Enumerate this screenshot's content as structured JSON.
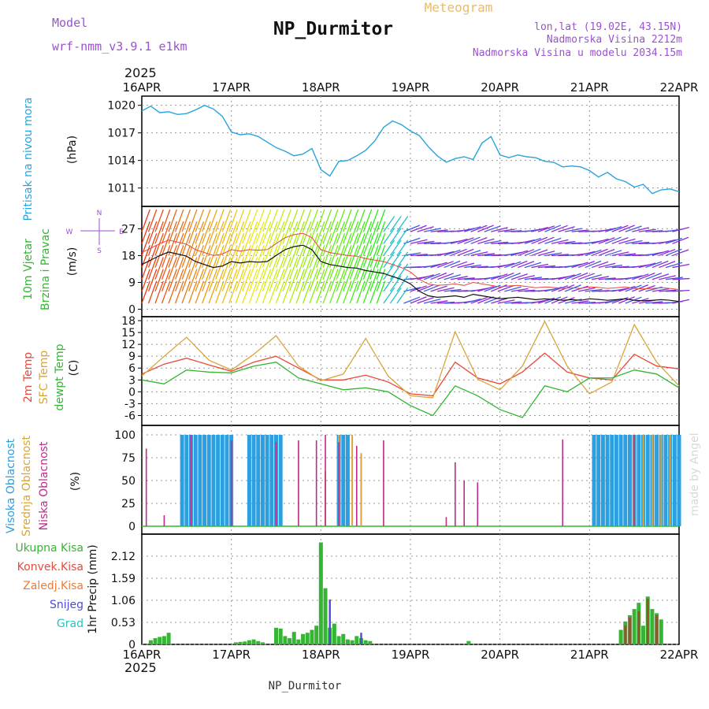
{
  "header": {
    "model_label": "Model",
    "model_name": "wrf-nmm_v3.9.1 e1km",
    "title": "NP_Durmitor",
    "subtitle": "Meteogram",
    "lonlat": "lon,lat (19.02E, 43.15N)",
    "elevation": "Nadmorska Visina 2212m",
    "model_elevation": "Nadmorska Visina u modelu 2034.15m",
    "credit": "made by Angel",
    "footer": "NP_Durmitor",
    "year_top": "2025",
    "year_bottom": "2025"
  },
  "colors": {
    "purple": "#9a52d0",
    "pressure": "#27a4de",
    "temp2m": "#e8493b",
    "sfc": "#d9a43a",
    "dew": "#35b533",
    "high_cloud": "#2b9fe0",
    "mid_cloud": "#d9a43a",
    "low_cloud": "#c02a8c",
    "total_precip": "#35b533",
    "conv_precip": "#e8493b",
    "frozen": "#ef7b2e",
    "snow": "#4b4bd8",
    "hail": "#27c2c2"
  },
  "axis": {
    "day_labels": [
      "16APR",
      "17APR",
      "18APR",
      "19APR",
      "20APR",
      "21APR",
      "22APR"
    ]
  },
  "chart_data": [
    {
      "type": "line",
      "title": "",
      "ylabel_left": "Pritisak na nivou mora",
      "ylabel": "(hPa)",
      "yticks": [
        "1020",
        "1017",
        "1014",
        "1011"
      ],
      "ylim": [
        1009.0,
        1021.0
      ],
      "series": [
        {
          "x": [
            0,
            0.1,
            0.2,
            0.3,
            0.4,
            0.5,
            0.6,
            0.7,
            0.8,
            0.9,
            1.0,
            1.1,
            1.2,
            1.3,
            1.4,
            1.5,
            1.6,
            1.7,
            1.8,
            1.9,
            2.0,
            2.1,
            2.2,
            2.3,
            2.4,
            2.5,
            2.6,
            2.7,
            2.8,
            2.9,
            3.0,
            3.1,
            3.2,
            3.3,
            3.4,
            3.5,
            3.6,
            3.7,
            3.8,
            3.9,
            4.0,
            4.1,
            4.2,
            4.3,
            4.4,
            4.5,
            4.6,
            4.7,
            4.8,
            4.9,
            5.0,
            5.1,
            5.2,
            5.3,
            5.4,
            5.5,
            5.6,
            5.7,
            5.8,
            5.9,
            6.0
          ],
          "values": [
            1019.4,
            1019.9,
            1019.2,
            1019.3,
            1019.0,
            1019.1,
            1019.5,
            1020.0,
            1019.6,
            1018.8,
            1017.1,
            1016.8,
            1016.9,
            1016.6,
            1016.0,
            1015.4,
            1015.0,
            1014.5,
            1014.7,
            1015.3,
            1013.0,
            1012.3,
            1013.9,
            1014.0,
            1014.5,
            1015.1,
            1016.1,
            1017.6,
            1018.3,
            1017.9,
            1017.2,
            1016.7,
            1015.5,
            1014.5,
            1013.8,
            1014.2,
            1014.4,
            1014.1,
            1015.9,
            1016.6,
            1014.6,
            1014.3,
            1014.6,
            1014.4,
            1014.3,
            1013.9,
            1013.8,
            1013.3,
            1013.4,
            1013.3,
            1012.9,
            1012.2,
            1012.7,
            1012.0,
            1011.7,
            1011.1,
            1011.4,
            1010.4,
            1010.8,
            1010.9,
            1010.6
          ],
          "name": ""
        }
      ]
    },
    {
      "type": "line",
      "title": "",
      "ylabel_left": "10m Vjetar",
      "ylabel_left2": "Brzina i Pravac",
      "ylabel": "(m/s)",
      "yticks": [
        "27",
        "18",
        "9",
        "0"
      ],
      "ylim": [
        -2.5,
        34.5
      ],
      "compass": {
        "n": "N",
        "s": "S",
        "w": "W",
        "e": "E"
      },
      "series": [
        {
          "name": "",
          "x": [
            0,
            0.1,
            0.2,
            0.3,
            0.4,
            0.5,
            0.6,
            0.7,
            0.8,
            0.9,
            1.0,
            1.1,
            1.2,
            1.3,
            1.4,
            1.5,
            1.6,
            1.7,
            1.8,
            1.9,
            2.0,
            2.1,
            2.2,
            2.3,
            2.4,
            2.5,
            2.6,
            2.7,
            2.8,
            2.9,
            3.0,
            3.1,
            3.2,
            3.3,
            3.4,
            3.5,
            3.6,
            3.7,
            3.8,
            3.9,
            4.0,
            4.1,
            4.2,
            4.3,
            4.4,
            4.5,
            4.6,
            4.7,
            4.8,
            4.9,
            5.0,
            5.1,
            5.2,
            5.3,
            5.4,
            5.5,
            5.6,
            5.7,
            5.8,
            5.9,
            6.0
          ],
          "values": [
            15.0,
            16.5,
            18.0,
            19.2,
            18.5,
            17.8,
            16.0,
            15.0,
            14.0,
            14.5,
            16.0,
            15.5,
            16.0,
            15.8,
            16.0,
            18.0,
            20.0,
            21.0,
            21.5,
            20.0,
            16.0,
            15.0,
            14.5,
            14.0,
            13.8,
            13.0,
            12.5,
            12.0,
            11.0,
            10.0,
            8.5,
            6.0,
            4.5,
            4.0,
            4.2,
            4.5,
            4.0,
            5.0,
            4.5,
            4.0,
            3.5,
            3.8,
            4.0,
            3.6,
            3.2,
            3.5,
            3.3,
            3.0,
            3.2,
            3.0,
            3.5,
            3.3,
            3.0,
            3.2,
            3.5,
            3.0,
            2.8,
            3.0,
            3.2,
            3.0,
            2.6
          ]
        }
      ]
    },
    {
      "type": "line",
      "title": "",
      "ylabel_left": "2m Temp",
      "ylabel_left2": "SFC Temp",
      "ylabel_left3": "dewpt Temp",
      "ylabel": "(C)",
      "yticks": [
        "18",
        "15",
        "12",
        "9",
        "6",
        "3",
        "0",
        "-3",
        "-6"
      ],
      "ylim": [
        -8.5,
        19.0
      ],
      "series": [
        {
          "name": "",
          "x": [
            0,
            0.25,
            0.5,
            0.75,
            1.0,
            1.25,
            1.5,
            1.75,
            2.0,
            2.25,
            2.5,
            2.75,
            3.0,
            3.25,
            3.5,
            3.75,
            4.0,
            4.25,
            4.5,
            4.75,
            5.0,
            5.25,
            5.5,
            5.75,
            6.0
          ],
          "values": [
            4.5,
            7.0,
            8.5,
            6.8,
            5.2,
            7.5,
            9.0,
            6.0,
            3.0,
            3.0,
            4.2,
            2.5,
            -0.5,
            -1.0,
            7.5,
            3.5,
            2.0,
            5.0,
            9.8,
            5.0,
            3.5,
            3.0,
            9.5,
            6.5,
            5.8
          ]
        },
        {
          "name": "",
          "x": [
            0,
            0.25,
            0.5,
            0.75,
            1.0,
            1.25,
            1.5,
            1.75,
            2.0,
            2.25,
            2.5,
            2.75,
            3.0,
            3.25,
            3.5,
            3.75,
            4.0,
            4.25,
            4.5,
            4.75,
            5.0,
            5.25,
            5.5,
            5.75,
            6.0
          ],
          "values": [
            4.0,
            9.0,
            13.8,
            8.0,
            5.5,
            9.5,
            14.2,
            6.5,
            2.8,
            4.5,
            13.5,
            4.0,
            -1.0,
            -1.5,
            15.2,
            3.2,
            0.5,
            6.5,
            17.8,
            6.5,
            -0.5,
            2.5,
            17.0,
            7.5,
            1.5
          ]
        },
        {
          "name": "",
          "x": [
            0,
            0.25,
            0.5,
            0.75,
            1.0,
            1.25,
            1.5,
            1.75,
            2.0,
            2.25,
            2.5,
            2.75,
            3.0,
            3.25,
            3.5,
            3.75,
            4.0,
            4.25,
            4.5,
            4.75,
            5.0,
            5.25,
            5.5,
            5.75,
            6.0
          ],
          "values": [
            3.0,
            2.0,
            5.5,
            5.0,
            4.8,
            6.5,
            7.5,
            3.5,
            2.0,
            0.5,
            1.0,
            0.0,
            -3.5,
            -6.0,
            1.5,
            -1.0,
            -4.5,
            -6.5,
            1.5,
            0.0,
            3.5,
            3.5,
            5.5,
            4.5,
            1.0
          ]
        }
      ]
    },
    {
      "type": "bar",
      "title": "",
      "ylabel_left": "Visoka Oblacnost",
      "ylabel_left2": "Srednja Oblacnost",
      "ylabel_left3": "Niska Oblacnost",
      "ylabel": "(%)",
      "yticks": [
        "100",
        "75",
        "50",
        "25",
        "0"
      ],
      "ylim": [
        0,
        100
      ],
      "high": {
        "x": [
          0.45,
          0.5,
          0.55,
          0.6,
          0.65,
          0.7,
          0.75,
          0.8,
          0.85,
          0.9,
          0.95,
          1.0,
          1.2,
          1.25,
          1.3,
          1.35,
          1.4,
          1.45,
          1.5,
          1.55,
          2.2,
          2.25,
          2.3,
          5.05,
          5.1,
          5.15,
          5.2,
          5.25,
          5.3,
          5.35,
          5.4,
          5.45,
          5.5,
          5.55,
          5.6,
          5.65,
          5.7,
          5.75,
          5.8,
          5.85,
          5.9,
          5.95,
          6.0
        ],
        "values": [
          100,
          100,
          100,
          100,
          100,
          100,
          100,
          100,
          100,
          100,
          100,
          100,
          100,
          100,
          100,
          100,
          100,
          100,
          100,
          100,
          100,
          100,
          100,
          100,
          100,
          100,
          100,
          100,
          100,
          100,
          100,
          100,
          100,
          100,
          100,
          100,
          100,
          100,
          100,
          100,
          100,
          100,
          100
        ]
      },
      "mid": {
        "x": [
          2.05,
          2.2,
          2.35,
          2.45,
          5.5,
          5.6,
          5.7,
          5.8,
          5.9
        ],
        "values": [
          60,
          100,
          100,
          80,
          100,
          100,
          100,
          100,
          100
        ]
      },
      "low": {
        "x": [
          0.05,
          0.25,
          0.55,
          1.0,
          1.5,
          1.75,
          1.95,
          2.05,
          2.2,
          2.4,
          2.7,
          3.4,
          3.5,
          3.6,
          3.75,
          4.7,
          5.5
        ],
        "values": [
          85,
          12,
          100,
          94,
          92,
          94,
          94,
          100,
          92,
          88,
          94,
          10,
          70,
          50,
          48,
          95,
          100
        ]
      }
    },
    {
      "type": "bar",
      "title": "",
      "ylabel": "1hr Precip (mm)",
      "legend_labels": [
        "Ukupna Kisa",
        "Konvek.Kisa",
        "Zaledj.Kisa",
        "Snijeg",
        "Grad"
      ],
      "yticks": [
        "2.12",
        "1.59",
        "1.06",
        "0.53",
        "0"
      ],
      "ylim": [
        0,
        2.65
      ],
      "total": {
        "x": [
          0.1,
          0.15,
          0.2,
          0.25,
          0.3,
          1.05,
          1.1,
          1.15,
          1.2,
          1.25,
          1.3,
          1.35,
          1.5,
          1.55,
          1.6,
          1.65,
          1.7,
          1.75,
          1.8,
          1.85,
          1.9,
          1.95,
          2.0,
          2.05,
          2.1,
          2.15,
          2.2,
          2.25,
          2.3,
          2.35,
          2.4,
          2.45,
          2.5,
          2.55,
          3.65,
          5.35,
          5.4,
          5.45,
          5.5,
          5.55,
          5.6,
          5.65,
          5.7,
          5.75,
          5.8
        ],
        "values": [
          0.1,
          0.15,
          0.18,
          0.2,
          0.28,
          0.05,
          0.06,
          0.07,
          0.1,
          0.12,
          0.08,
          0.05,
          0.4,
          0.38,
          0.2,
          0.15,
          0.3,
          0.12,
          0.25,
          0.28,
          0.35,
          0.45,
          2.45,
          1.35,
          0.4,
          0.5,
          0.2,
          0.25,
          0.12,
          0.1,
          0.2,
          0.15,
          0.1,
          0.08,
          0.08,
          0.35,
          0.55,
          0.7,
          0.85,
          1.0,
          0.45,
          1.15,
          0.85,
          0.75,
          0.6
        ]
      },
      "conv": {
        "x": [
          5.4,
          5.45,
          5.55,
          5.65,
          5.75
        ],
        "values": [
          0.45,
          0.65,
          0.8,
          1.1,
          0.7
        ]
      },
      "snow": {
        "x": [
          2.1,
          2.45
        ],
        "values": [
          1.08,
          0.28
        ]
      }
    }
  ]
}
